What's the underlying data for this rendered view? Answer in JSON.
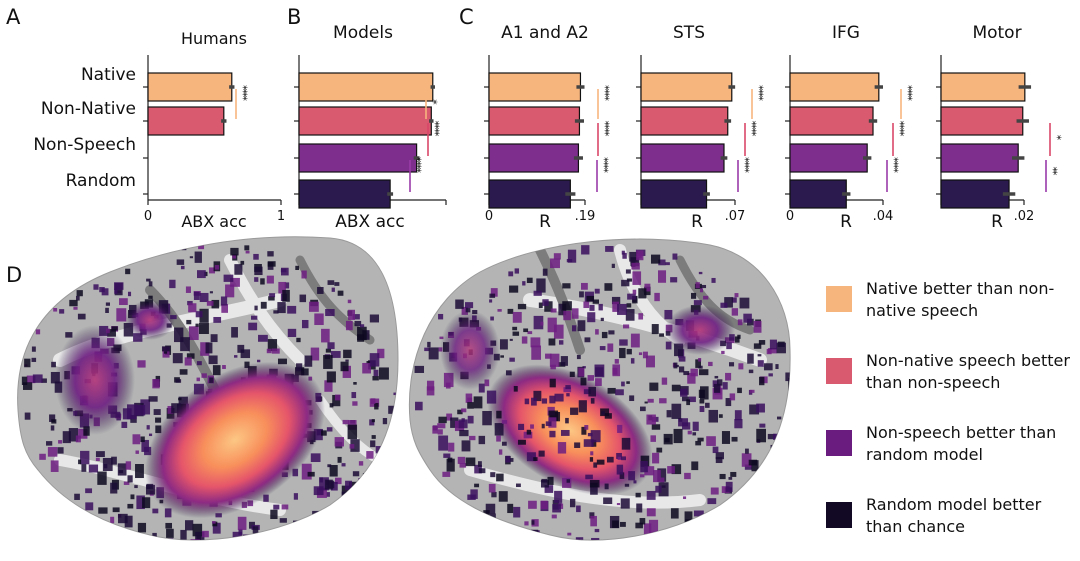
{
  "colors": {
    "native": "#f7b57e",
    "nonnative": "#d95a6e",
    "nonspeech": "#7e2f8e",
    "random": "#2a1a4e",
    "errorbar": "#444444",
    "sig_native": "#f7b57e",
    "sig_nonnative": "#d9476a",
    "sig_nonspeech": "#9a3aa8"
  },
  "panels": {
    "A": {
      "letter": "A",
      "title": "Humans",
      "xlabel": "ABX acc",
      "ticks": [
        "0",
        "1"
      ]
    },
    "B": {
      "letter": "B",
      "title": "Models",
      "xlabel": "ABX acc"
    },
    "C": {
      "letter": "C"
    },
    "D": {
      "letter": "D"
    }
  },
  "chart_data": [
    {
      "type": "bar",
      "orientation": "horizontal",
      "panel": "A",
      "title": "Humans",
      "xlabel": "ABX acc",
      "xlim": [
        0,
        1
      ],
      "categories": [
        "Native",
        "Non-Native",
        "Non-Speech",
        "Random"
      ],
      "values": [
        0.63,
        0.57,
        null,
        null
      ],
      "errors": [
        0.02,
        0.02,
        null,
        null
      ],
      "significance": [
        {
          "between": [
            "Native",
            "Non-Native"
          ],
          "stars": "****",
          "color": "native"
        }
      ]
    },
    {
      "type": "bar",
      "orientation": "horizontal",
      "panel": "B",
      "title": "Models",
      "xlabel": "ABX acc",
      "xlim": [
        0,
        1
      ],
      "categories": [
        "Native",
        "Non-Native",
        "Non-Speech",
        "Random"
      ],
      "values": [
        0.91,
        0.9,
        0.8,
        0.62
      ],
      "errors": [
        0.015,
        0.015,
        0.02,
        0.02
      ],
      "significance": [
        {
          "between": [
            "Native",
            "Non-Native"
          ],
          "stars": "*",
          "color": "native"
        },
        {
          "between": [
            "Non-Native",
            "Non-Speech"
          ],
          "stars": "****",
          "color": "nonnative"
        },
        {
          "between": [
            "Non-Speech",
            "Random"
          ],
          "stars": "****",
          "color": "nonspeech"
        }
      ]
    },
    {
      "type": "bar",
      "orientation": "horizontal",
      "panel": "C",
      "title": "A1 and A2",
      "xlabel": "R",
      "xlim": [
        0,
        0.19
      ],
      "tick_labels": [
        "0",
        ".19"
      ],
      "categories": [
        "Native",
        "Non-Native",
        "Non-Speech",
        "Random"
      ],
      "values": [
        0.181,
        0.179,
        0.177,
        0.161
      ],
      "errors": [
        0.008,
        0.009,
        0.009,
        0.01
      ],
      "significance": [
        {
          "between": [
            "Native",
            "Non-Native"
          ],
          "stars": "****",
          "color": "native"
        },
        {
          "between": [
            "Non-Native",
            "Non-Speech"
          ],
          "stars": "****",
          "color": "nonnative"
        },
        {
          "between": [
            "Non-Speech",
            "Random"
          ],
          "stars": "****",
          "color": "nonspeech"
        }
      ]
    },
    {
      "type": "bar",
      "orientation": "horizontal",
      "panel": "C",
      "title": "STS",
      "xlabel": "R",
      "xlim": [
        0,
        0.07
      ],
      "tick_labels": [
        ".07"
      ],
      "categories": [
        "Native",
        "Non-Native",
        "Non-Speech",
        "Random"
      ],
      "values": [
        0.0676,
        0.0646,
        0.0618,
        0.0488
      ],
      "errors": [
        0.0025,
        0.0025,
        0.0025,
        0.0025
      ],
      "significance": [
        {
          "between": [
            "Native",
            "Non-Native"
          ],
          "stars": "****",
          "color": "native"
        },
        {
          "between": [
            "Non-Native",
            "Non-Speech"
          ],
          "stars": "****",
          "color": "nonnative"
        },
        {
          "between": [
            "Non-Speech",
            "Random"
          ],
          "stars": "****",
          "color": "nonspeech"
        }
      ]
    },
    {
      "type": "bar",
      "orientation": "horizontal",
      "panel": "C",
      "title": "IFG",
      "xlabel": "R",
      "xlim": [
        0,
        0.04
      ],
      "tick_labels": [
        "0",
        ".04"
      ],
      "categories": [
        "Native",
        "Non-Native",
        "Non-Speech",
        "Random"
      ],
      "values": [
        0.0382,
        0.0357,
        0.0332,
        0.0242
      ],
      "errors": [
        0.0018,
        0.0018,
        0.0018,
        0.0018
      ],
      "significance": [
        {
          "between": [
            "Native",
            "Non-Native"
          ],
          "stars": "****",
          "color": "native"
        },
        {
          "between": [
            "Non-Native",
            "Non-Speech"
          ],
          "stars": "****",
          "color": "nonnative"
        },
        {
          "between": [
            "Non-Speech",
            "Random"
          ],
          "stars": "****",
          "color": "nonspeech"
        }
      ]
    },
    {
      "type": "bar",
      "orientation": "horizontal",
      "panel": "C",
      "title": "Motor",
      "xlabel": "R",
      "xlim": [
        0,
        0.02
      ],
      "tick_labels": [
        ".02"
      ],
      "categories": [
        "Native",
        "Non-Native",
        "Non-Speech",
        "Random"
      ],
      "values": [
        0.0202,
        0.0197,
        0.0186,
        0.0164
      ],
      "errors": [
        0.0015,
        0.0015,
        0.0015,
        0.0015
      ],
      "significance": [
        {
          "between": [
            "Non-Native",
            "Non-Speech"
          ],
          "stars": "*",
          "color": "nonnative"
        },
        {
          "between": [
            "Non-Speech",
            "Random"
          ],
          "stars": "**",
          "color": "nonspeech"
        }
      ]
    }
  ],
  "legend": [
    {
      "label": "Native better than non-native speech",
      "color": "native"
    },
    {
      "label": "Non-native speech better than non-speech",
      "color": "nonnative"
    },
    {
      "label": "Non-speech better than random model",
      "color": "nonspeech"
    },
    {
      "label": "Random model better than chance",
      "color": "random"
    }
  ],
  "brain": {
    "cortex_color": "#b4b4b4",
    "sulcus_color": "#7a7a7a",
    "gyrus_color": "#e6e6e6",
    "colormap": [
      "#0d0820",
      "#3a0f5e",
      "#6d1d81",
      "#b5367a",
      "#e5556a",
      "#f88f5b",
      "#fcc784"
    ]
  }
}
